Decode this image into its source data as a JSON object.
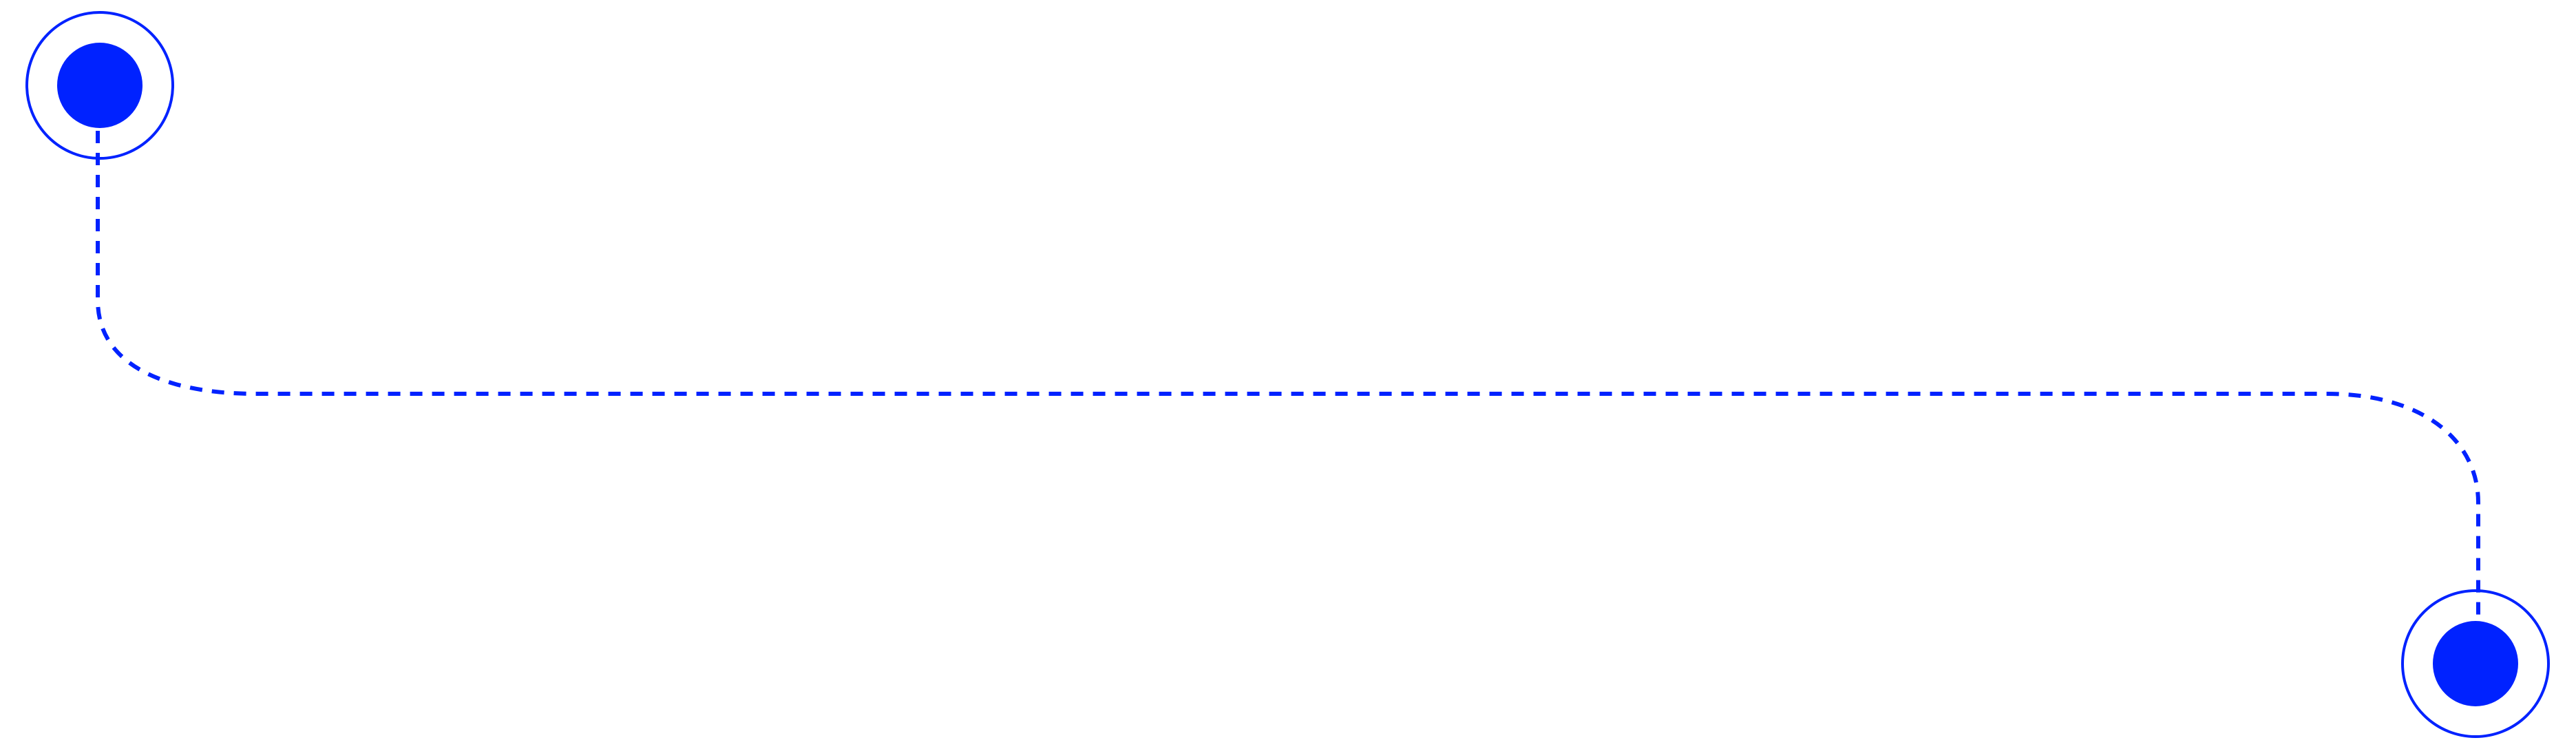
{
  "diagram": {
    "type": "connector-path",
    "color": "#0022FF",
    "line_style": "dashed",
    "start_node_icon": "filled-circle-with-ring",
    "end_node_icon": "filled-circle-with-ring"
  }
}
